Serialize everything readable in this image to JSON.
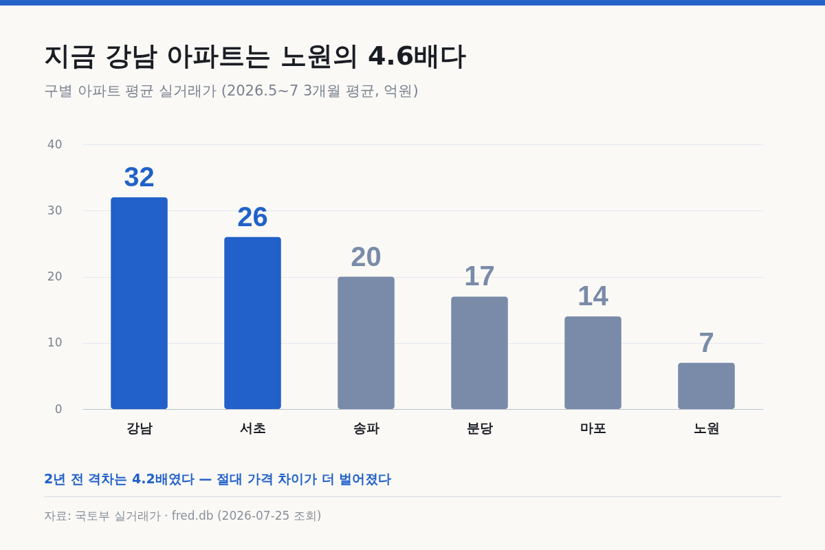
{
  "chart_data": {
    "type": "bar",
    "title": "지금 강남 아파트는 노원의 4.6배다",
    "subtitle": "구별 아파트 평균 실거래가 (2026.5~7 3개월 평균, 억원)",
    "categories": [
      "강남",
      "서초",
      "송파",
      "분당",
      "마포",
      "노원"
    ],
    "values": [
      32,
      26,
      20,
      17,
      14,
      7
    ],
    "colors": [
      "#2161c9",
      "#2161c9",
      "#798ba8",
      "#798ba8",
      "#798ba8",
      "#798ba8"
    ],
    "ylim": [
      0,
      40
    ],
    "yticks": [
      0,
      10,
      20,
      30,
      40
    ],
    "grid": "y",
    "data_labels": true,
    "annotations": [
      "2년 전 격차는 4.2배였다 — 절대 가격 차이가 더 벌어졌다",
      "자료: 국토부 실거래가 · fred.db (2026-07-25 조회)"
    ]
  }
}
